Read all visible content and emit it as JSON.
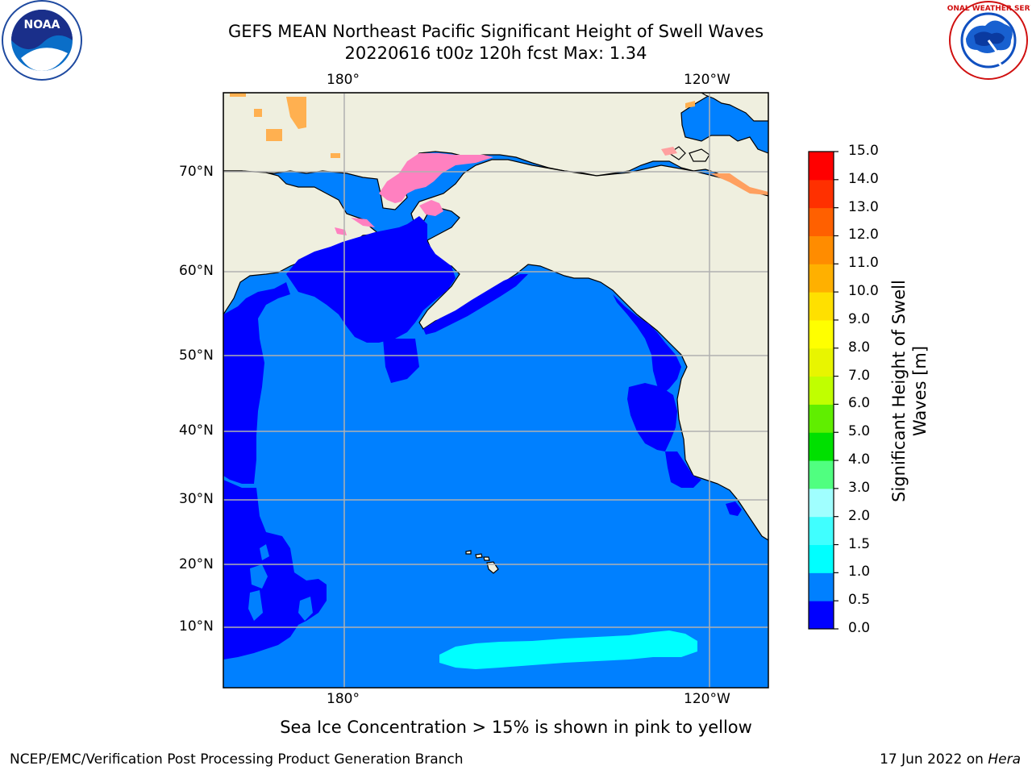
{
  "title": {
    "line1": "GEFS MEAN Northeast Pacific Significant Height of Swell Waves",
    "line2": "20220616 t00z 120h fcst   Max: 1.34"
  },
  "axes": {
    "lon_top": [
      "180°",
      "120°W"
    ],
    "lon_bottom": [
      "180°",
      "120°W"
    ],
    "lat": [
      "70°N",
      "60°N",
      "50°N",
      "40°N",
      "30°N",
      "20°N",
      "10°N"
    ]
  },
  "colorbar": {
    "title": "Significant Height of Swell Waves [m]",
    "ticks": [
      "15.0",
      "14.0",
      "13.0",
      "12.0",
      "11.0",
      "10.0",
      "9.0",
      "8.0",
      "7.0",
      "6.0",
      "5.0",
      "4.0",
      "3.0",
      "2.0",
      "1.5",
      "1.0",
      "0.5",
      "0.0"
    ],
    "colors_bottom_to_top": [
      "#0000ff",
      "#0080ff",
      "#00ffff",
      "#40ffff",
      "#a0ffff",
      "#50ff80",
      "#00e000",
      "#60ee00",
      "#c0ff00",
      "#e8f500",
      "#ffff00",
      "#ffe000",
      "#ffb000",
      "#ff8c00",
      "#ff6000",
      "#ff3000",
      "#ff0000"
    ]
  },
  "caption": "Sea Ice Concentration > 15% is shown in pink to yellow",
  "footer": {
    "left": "NCEP/EMC/Verification Post Processing Product Generation Branch",
    "right_date": "17 Jun 2022 on ",
    "right_host": "Hera"
  },
  "logos": {
    "noaa_text": "NOAA",
    "nws_text": "NATIONAL WEATHER SERVICE"
  },
  "map_colors": {
    "land": "#efefdf",
    "ocean_low": "#0000ff",
    "ocean_mid": "#0080ff",
    "ocean_high": "#00ffff",
    "ice": "#ff80c0"
  }
}
